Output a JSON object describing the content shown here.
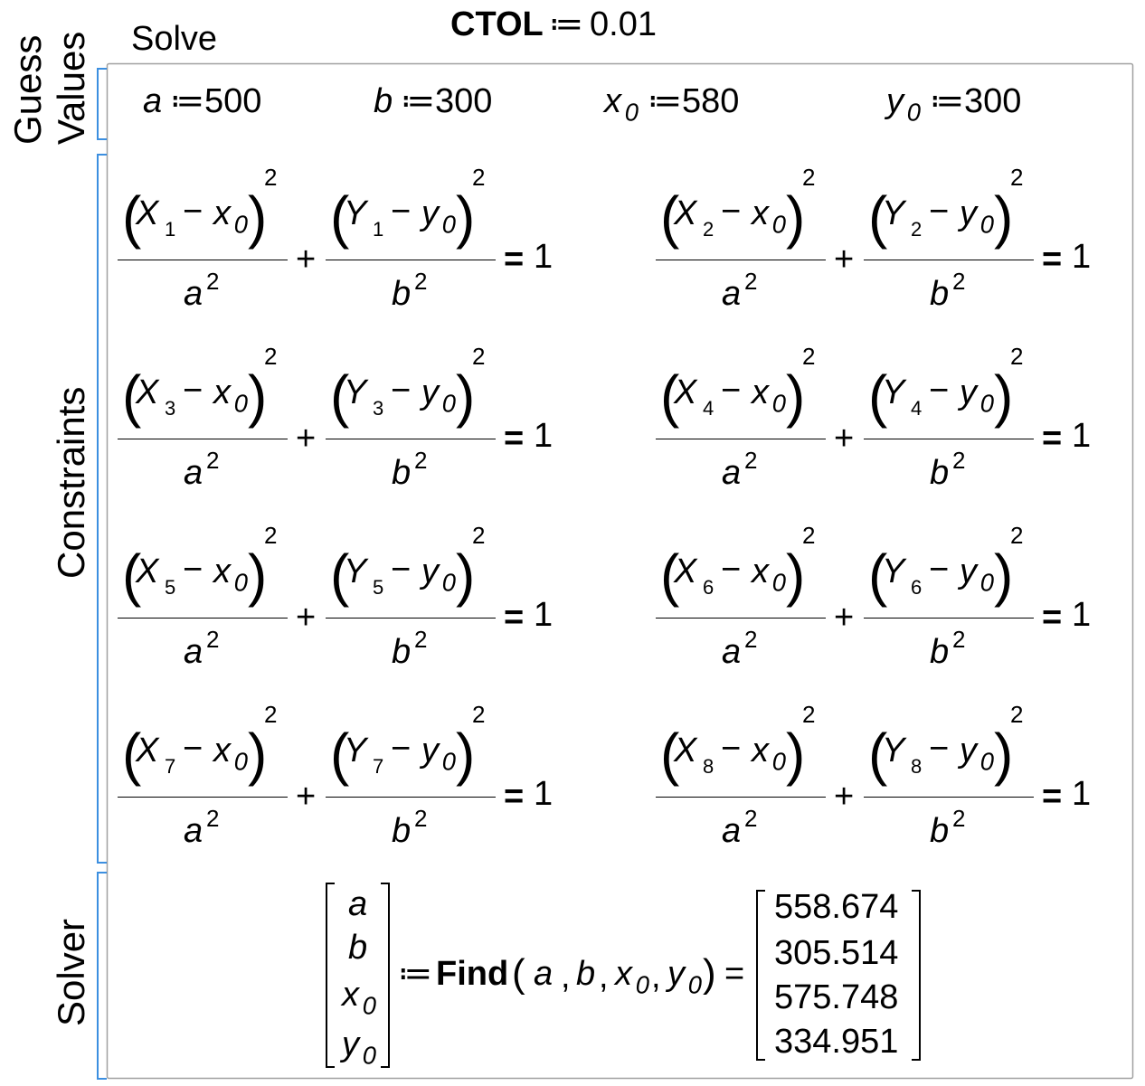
{
  "title": "Solve",
  "ctol": {
    "name": "CTOL",
    "value": 0.01
  },
  "regions": {
    "guess": [
      "Guess",
      "Values"
    ],
    "constraints": "Constraints",
    "solver": "Solver"
  },
  "symbols": {
    "define": "≔",
    "minus": "−",
    "plus": "+",
    "equals": "=",
    "power": "2",
    "rhs": "1",
    "lparen": "(",
    "rparen": ")",
    "comma": ","
  },
  "variables": {
    "a": {
      "name": "a"
    },
    "b": {
      "name": "b"
    },
    "x0": {
      "name": "x",
      "sub": "0"
    },
    "y0": {
      "name": "y",
      "sub": "0"
    }
  },
  "guess_values": [
    {
      "var": "a",
      "value": 500
    },
    {
      "var": "b",
      "value": 300
    },
    {
      "var": "x0",
      "value": 580
    },
    {
      "var": "y0",
      "value": 300
    }
  ],
  "constraint_vars": {
    "X": "X",
    "Y": "Y"
  },
  "constraint_indices": [
    1,
    2,
    3,
    4,
    5,
    6,
    7,
    8
  ],
  "solver": {
    "function": "Find",
    "results": [
      558.674,
      305.514,
      575.748,
      334.951
    ]
  }
}
